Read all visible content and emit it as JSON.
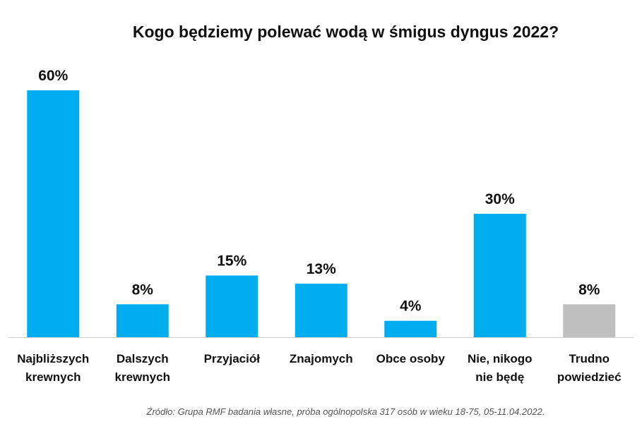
{
  "chart_data": {
    "type": "bar",
    "title": "Kogo będziemy polewać wodą w śmigus dyngus 2022?",
    "categories": [
      [
        "Najbliższych",
        "krewnych"
      ],
      [
        "Dalszych",
        "krewnych"
      ],
      [
        "Przyjaciół"
      ],
      [
        "Znajomych"
      ],
      [
        "Obce osoby"
      ],
      [
        "Nie, nikogo",
        "nie będę"
      ],
      [
        "Trudno",
        "powiedzieć"
      ]
    ],
    "values": [
      60,
      8,
      15,
      13,
      4,
      30,
      8
    ],
    "value_labels": [
      "60%",
      "8%",
      "15%",
      "13%",
      "4%",
      "30%",
      "8%"
    ],
    "colors": [
      "#00adee",
      "#00adee",
      "#00adee",
      "#00adee",
      "#00adee",
      "#00adee",
      "#bfbfbf"
    ],
    "xlabel": "",
    "ylabel": "",
    "ylim": [
      0,
      60
    ],
    "grid": false
  },
  "source": "Źródło: Grupa RMF badania własne, próba ogólnopolska 317 osób w wieku 18-75, 05-11.04.2022."
}
